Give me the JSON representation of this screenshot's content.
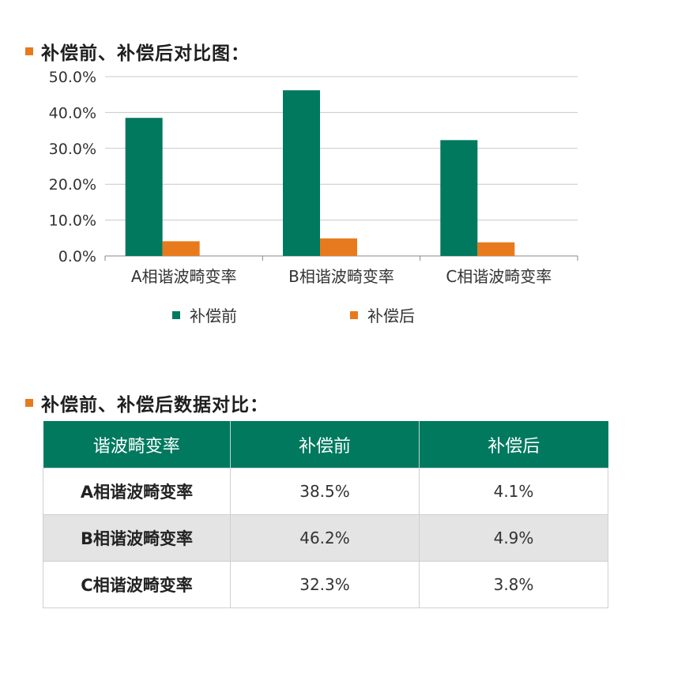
{
  "section1": {
    "title": "补偿前、补偿后对比图："
  },
  "section2": {
    "title": "补偿前、补偿后数据对比："
  },
  "colors": {
    "before": "#00795f",
    "after": "#e87a1e",
    "header_bg": "#00795f"
  },
  "chart_data": {
    "type": "bar",
    "categories": [
      "A相谐波畸变率",
      "B相谐波畸变率",
      "C相谐波畸变率"
    ],
    "series": [
      {
        "name": "补偿前",
        "values": [
          38.5,
          46.2,
          32.3
        ]
      },
      {
        "name": "补偿后",
        "values": [
          4.1,
          4.9,
          3.8
        ]
      }
    ],
    "yticks": [
      "0.0%",
      "10.0%",
      "20.0%",
      "30.0%",
      "40.0%",
      "50.0%"
    ],
    "ylim": [
      0,
      50
    ],
    "grid": true,
    "legend_position": "bottom"
  },
  "table": {
    "headers": [
      "谐波畸变率",
      "补偿前",
      "补偿后"
    ],
    "rows": [
      [
        "A相谐波畸变率",
        "38.5%",
        "4.1%"
      ],
      [
        "B相谐波畸变率",
        "46.2%",
        "4.9%"
      ],
      [
        "C相谐波畸变率",
        "32.3%",
        "3.8%"
      ]
    ]
  }
}
